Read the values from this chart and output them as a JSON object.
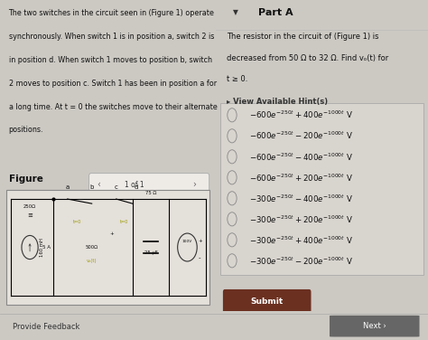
{
  "bg_color": "#ccc9c3",
  "left_bg": "#dedad4",
  "right_bg": "#dedad4",
  "divider_color": "#bbbbbb",
  "title_text_lines": [
    "The two switches in the circuit seen in (Figure 1) operate",
    "synchronously. When switch 1 is in position a, switch 2 is",
    "in position d. When switch 1 moves to position b, switch",
    "2 moves to position c. Switch 1 has been in position a for",
    "a long time. At t = 0 the switches move to their alternate",
    "positions."
  ],
  "figure_label": "Figure",
  "figure_nav": "1 of 1",
  "part_a_title": "Part A",
  "part_a_desc_lines": [
    "The resistor in the circuit of (Figure 1) is",
    "decreased from 50 Ω to 32 Ω. Find vₒ(t) for",
    "t ≥ 0."
  ],
  "hint_text": "▸ View Available Hint(s)",
  "options": [
    [
      "-600e^{-250t}",
      "+",
      "400e^{-1000t}",
      "V"
    ],
    [
      "-600e^{-250t}",
      "-",
      "200e^{-1000t}",
      "V"
    ],
    [
      "-600e^{-250t}",
      "-",
      "400e^{-1000t}",
      "V"
    ],
    [
      "-600e^{-250t}",
      "+",
      "200e^{-1000t}",
      "V"
    ],
    [
      "-300e^{-250t}",
      "-",
      "400e^{-1000t}",
      "V"
    ],
    [
      "-300e^{-250t}",
      "+",
      "200e^{-1000t}",
      "V"
    ],
    [
      "-300e^{-250t}",
      "+",
      "400e^{-1000t}",
      "V"
    ],
    [
      "-300e^{-250t}",
      "-",
      "200e^{-1000t}",
      "V"
    ]
  ],
  "submit_bg": "#6b3020",
  "submit_text": "Submit",
  "submit_text_color": "#ffffff",
  "footer_left": "Provide Feedback",
  "footer_right": "Next ›",
  "next_bg": "#666666",
  "footer_bg": "#c8c4be",
  "options_box_bg": "#d8d4ce",
  "options_box_border": "#aaaaaa"
}
